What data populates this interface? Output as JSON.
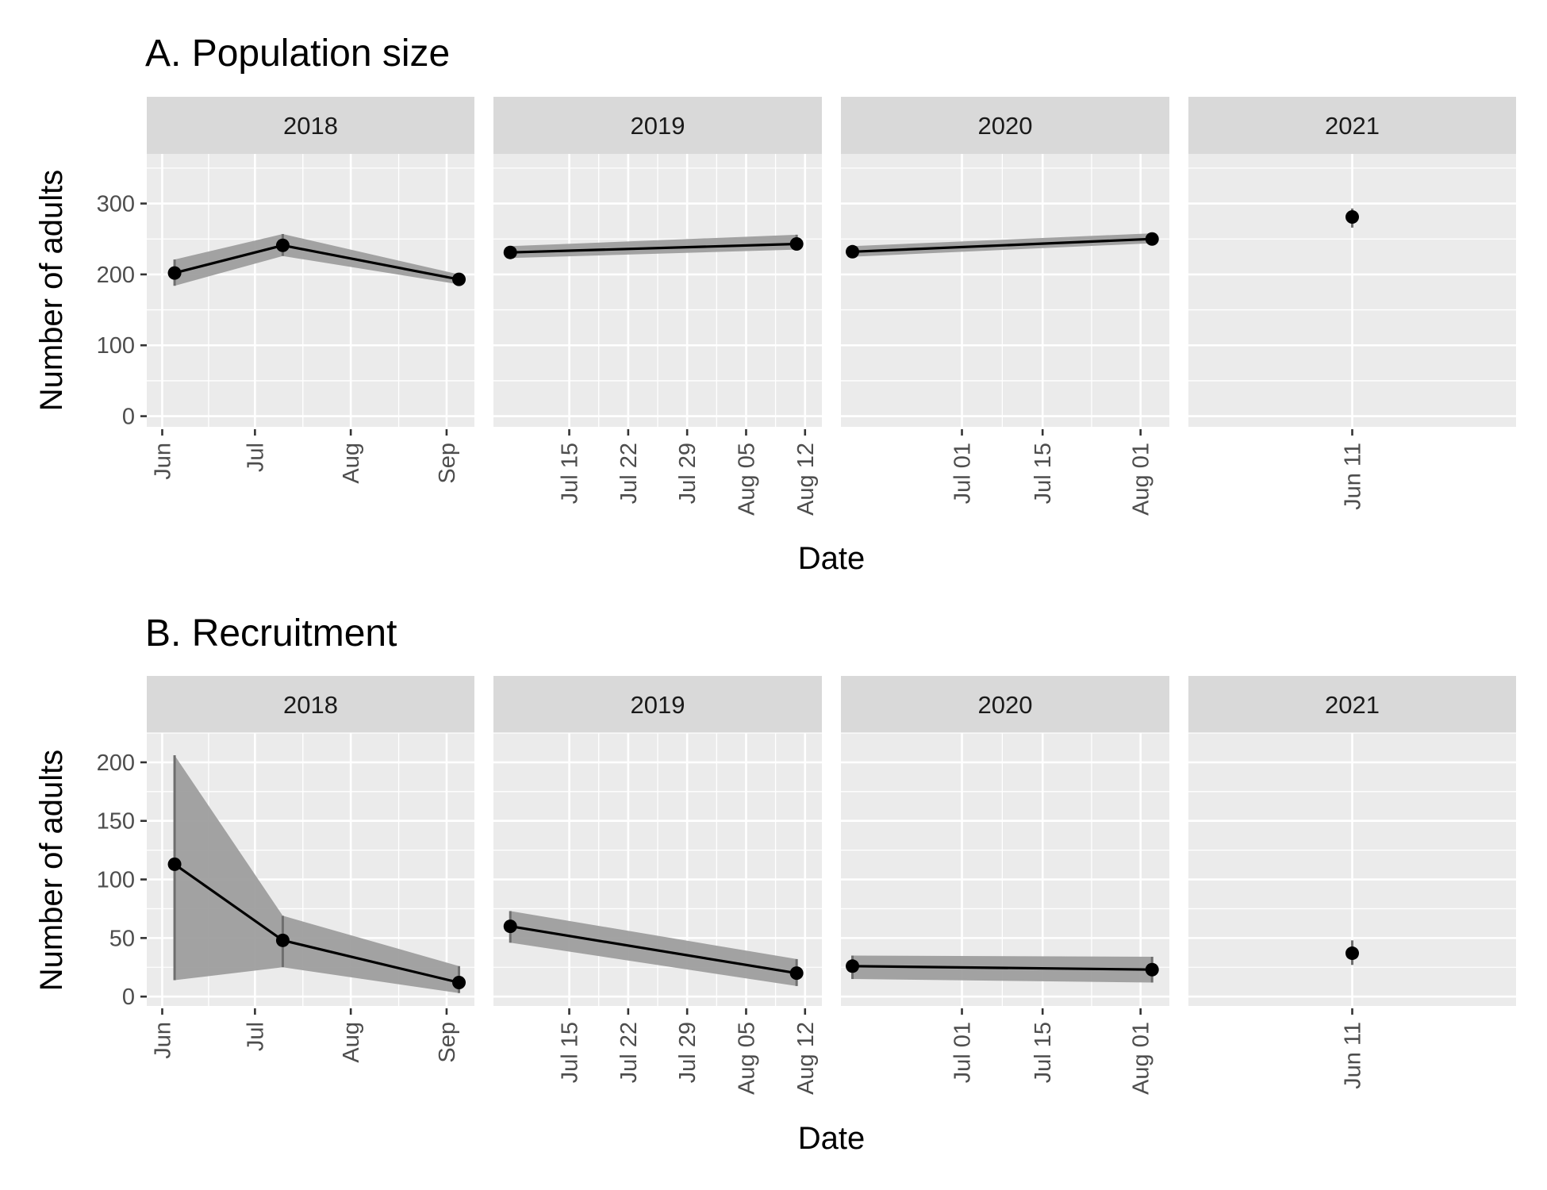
{
  "chart_data": [
    {
      "type": "line",
      "title": "A. Population size",
      "xlabel": "Date",
      "ylabel": "Number of adults",
      "ylim": [
        -15,
        370
      ],
      "yticks": [
        0,
        100,
        200,
        300
      ],
      "grid": true,
      "facets": [
        {
          "label": "2018",
          "xlim": [
            "2018-05-27",
            "2018-09-10"
          ],
          "xticks": [
            {
              "date": "2018-06-01",
              "label": "Jun"
            },
            {
              "date": "2018-07-01",
              "label": "Jul"
            },
            {
              "date": "2018-08-01",
              "label": "Aug"
            },
            {
              "date": "2018-09-01",
              "label": "Sep"
            }
          ],
          "points": [
            {
              "x": "2018-06-05",
              "y": 202,
              "lower": 184,
              "upper": 221
            },
            {
              "x": "2018-07-10",
              "y": 241,
              "lower": 226,
              "upper": 257
            },
            {
              "x": "2018-09-05",
              "y": 193,
              "lower": 186,
              "upper": 200
            }
          ]
        },
        {
          "label": "2019",
          "xlim": [
            "2019-07-06",
            "2019-08-14"
          ],
          "xticks": [
            {
              "date": "2019-07-15",
              "label": "Jul 15"
            },
            {
              "date": "2019-07-22",
              "label": "Jul 22"
            },
            {
              "date": "2019-07-29",
              "label": "Jul 29"
            },
            {
              "date": "2019-08-05",
              "label": "Aug 05"
            },
            {
              "date": "2019-08-12",
              "label": "Aug 12"
            }
          ],
          "points": [
            {
              "x": "2019-07-08",
              "y": 231,
              "lower": 223,
              "upper": 240
            },
            {
              "x": "2019-08-11",
              "y": 243,
              "lower": 235,
              "upper": 256
            }
          ]
        },
        {
          "label": "2020",
          "xlim": [
            "2020-06-10",
            "2020-08-06"
          ],
          "xticks": [
            {
              "date": "2020-07-01",
              "label": "Jul 01"
            },
            {
              "date": "2020-07-15",
              "label": "Jul 15"
            },
            {
              "date": "2020-08-01",
              "label": "Aug 01"
            }
          ],
          "points": [
            {
              "x": "2020-06-12",
              "y": 232,
              "lower": 225,
              "upper": 240
            },
            {
              "x": "2020-08-03",
              "y": 250,
              "lower": 244,
              "upper": 258
            }
          ]
        },
        {
          "label": "2021",
          "xlim": [
            "2021-06-10",
            "2021-06-12"
          ],
          "xticks": [
            {
              "date": "2021-06-11",
              "label": "Jun 11"
            }
          ],
          "points": [
            {
              "x": "2021-06-11",
              "y": 281,
              "lower": 266,
              "upper": 293
            }
          ]
        }
      ]
    },
    {
      "type": "line",
      "title": "B. Recruitment",
      "xlabel": "Date",
      "ylabel": "Number of adults",
      "ylim": [
        -8,
        225
      ],
      "yticks": [
        0,
        50,
        100,
        150,
        200
      ],
      "grid": true,
      "facets": [
        {
          "label": "2018",
          "xlim": [
            "2018-05-27",
            "2018-09-10"
          ],
          "xticks": [
            {
              "date": "2018-06-01",
              "label": "Jun"
            },
            {
              "date": "2018-07-01",
              "label": "Jul"
            },
            {
              "date": "2018-08-01",
              "label": "Aug"
            },
            {
              "date": "2018-09-01",
              "label": "Sep"
            }
          ],
          "points": [
            {
              "x": "2018-06-05",
              "y": 113,
              "lower": 14,
              "upper": 206
            },
            {
              "x": "2018-07-10",
              "y": 48,
              "lower": 25,
              "upper": 69
            },
            {
              "x": "2018-09-05",
              "y": 12,
              "lower": 3,
              "upper": 26
            }
          ]
        },
        {
          "label": "2019",
          "xlim": [
            "2019-07-06",
            "2019-08-14"
          ],
          "xticks": [
            {
              "date": "2019-07-15",
              "label": "Jul 15"
            },
            {
              "date": "2019-07-22",
              "label": "Jul 22"
            },
            {
              "date": "2019-07-29",
              "label": "Jul 29"
            },
            {
              "date": "2019-08-05",
              "label": "Aug 05"
            },
            {
              "date": "2019-08-12",
              "label": "Aug 12"
            }
          ],
          "points": [
            {
              "x": "2019-07-08",
              "y": 60,
              "lower": 46,
              "upper": 73
            },
            {
              "x": "2019-08-11",
              "y": 20,
              "lower": 9,
              "upper": 32
            }
          ]
        },
        {
          "label": "2020",
          "xlim": [
            "2020-06-10",
            "2020-08-06"
          ],
          "xticks": [
            {
              "date": "2020-07-01",
              "label": "Jul 01"
            },
            {
              "date": "2020-07-15",
              "label": "Jul 15"
            },
            {
              "date": "2020-08-01",
              "label": "Aug 01"
            }
          ],
          "points": [
            {
              "x": "2020-06-12",
              "y": 26,
              "lower": 15,
              "upper": 35
            },
            {
              "x": "2020-08-03",
              "y": 23,
              "lower": 12,
              "upper": 34
            }
          ]
        },
        {
          "label": "2021",
          "xlim": [
            "2021-06-10",
            "2021-06-12"
          ],
          "xticks": [
            {
              "date": "2021-06-11",
              "label": "Jun 11"
            }
          ],
          "points": [
            {
              "x": "2021-06-11",
              "y": 37,
              "lower": 27,
              "upper": 48
            }
          ]
        }
      ]
    }
  ],
  "colors": {
    "panel_background": "#ebebeb",
    "strip_background": "#d9d9d9",
    "grid": "#ffffff",
    "ribbon": "#9e9e9e",
    "line": "#000000",
    "point": "#000000",
    "tick_text": "#4d4d4d"
  }
}
